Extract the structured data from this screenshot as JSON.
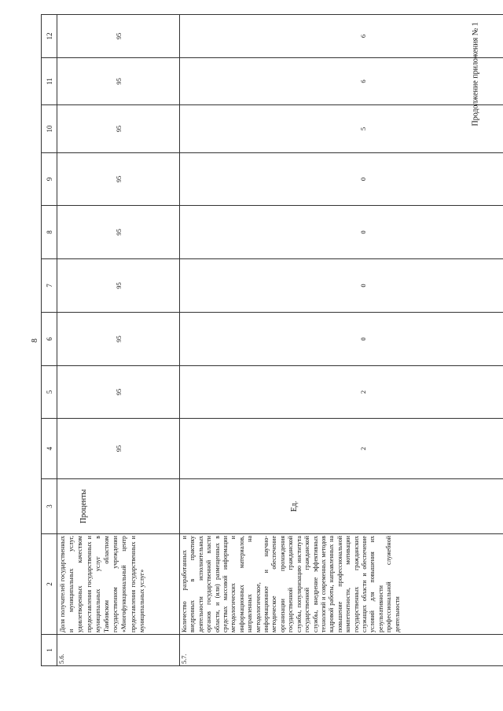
{
  "page_number": "8",
  "caption": "Продолжение приложения № 1",
  "table": {
    "header": [
      "1",
      "2",
      "3",
      "4",
      "5",
      "6",
      "7",
      "8",
      "9",
      "10",
      "11",
      "12"
    ],
    "rows": [
      {
        "index": "5.6.",
        "description": "Доля получателей государственных и муниципальных услуг, удовлетворенных качеством предоставления государственных и муниципальных услуг в Тамбовском областном государственном учреждении «Многофункциональный центр предоставления государственных и муниципальных услуг»",
        "unit": "Проценты",
        "values": [
          "95",
          "95",
          "95",
          "95",
          "95",
          "95",
          "95",
          "95",
          "95"
        ]
      },
      {
        "index": "5.7.",
        "description": "Количество разработанных и внедренных в практику деятельности исполнительных органов государственной власти области, и (или) размещенных в средствах массовой информации методологических и информационных материалов, направленных на методологическое, информационное и научно-методическое обеспечение организации прохождения государственной гражданской службы, популяризацию института государственной гражданской службы, внедрение эффективных технологий и современных методов кадровой работы, направленных на повышение профессиональной компетентности, мотивации государственных гражданских служащих области и обеспечение условий для повышения их результативности профессиональной служебной деятельности",
        "unit": "Ед.",
        "values": [
          "2",
          "2",
          "0",
          "0",
          "0",
          "0",
          "5",
          "6",
          "6"
        ]
      }
    ]
  }
}
